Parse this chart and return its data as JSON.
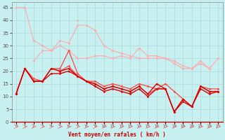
{
  "xlabel": "Vent moyen/en rafales ( km/h )",
  "background_color": "#c8f0f0",
  "grid_color": "#b0dede",
  "x": [
    0,
    1,
    2,
    3,
    4,
    5,
    6,
    7,
    8,
    9,
    10,
    11,
    12,
    13,
    14,
    15,
    16,
    17,
    18,
    19,
    20,
    21,
    22,
    23
  ],
  "series": [
    {
      "color": "#ffaaaa",
      "linewidth": 0.8,
      "marker": "D",
      "markersize": 1.5,
      "values": [
        45,
        45,
        32,
        30,
        28,
        30,
        28,
        25,
        25,
        26,
        26,
        25,
        26,
        25,
        29,
        26,
        26,
        25,
        23,
        21,
        21,
        24,
        21,
        25
      ]
    },
    {
      "color": "#ffaaaa",
      "linewidth": 0.8,
      "marker": "D",
      "markersize": 1.5,
      "values": [
        null,
        null,
        24,
        28,
        28,
        32,
        31,
        38,
        38,
        36,
        30,
        28,
        27,
        26,
        25,
        25,
        25,
        25,
        24,
        22,
        21,
        23,
        21,
        null
      ]
    },
    {
      "color": "#ffaaaa",
      "linewidth": 0.8,
      "marker": "D",
      "markersize": 1.5,
      "values": [
        null,
        null,
        null,
        null,
        null,
        null,
        null,
        40,
        null,
        null,
        null,
        null,
        null,
        null,
        null,
        null,
        null,
        null,
        null,
        null,
        null,
        null,
        null,
        null
      ]
    },
    {
      "color": "#ff4444",
      "linewidth": 0.9,
      "marker": "D",
      "markersize": 1.5,
      "values": [
        11,
        21,
        17,
        16,
        21,
        21,
        28,
        19,
        16,
        16,
        14,
        15,
        14,
        13,
        15,
        14,
        13,
        15,
        12,
        9,
        6,
        14,
        13,
        13
      ]
    },
    {
      "color": "#ff4444",
      "linewidth": 0.9,
      "marker": "D",
      "markersize": 1.5,
      "values": [
        11,
        21,
        16,
        16,
        21,
        20,
        22,
        18,
        16,
        15,
        13,
        14,
        13,
        12,
        14,
        11,
        13,
        13,
        4,
        9,
        6,
        14,
        12,
        12
      ]
    },
    {
      "color": "#dd0000",
      "linewidth": 1.0,
      "marker": "D",
      "markersize": 1.5,
      "values": [
        11,
        21,
        16,
        16,
        21,
        20,
        21,
        18,
        16,
        15,
        13,
        14,
        13,
        12,
        14,
        11,
        15,
        13,
        4,
        9,
        6,
        14,
        12,
        12
      ]
    },
    {
      "color": "#dd0000",
      "linewidth": 1.0,
      "marker": "D",
      "markersize": 1.5,
      "values": [
        11,
        21,
        16,
        16,
        19,
        19,
        20,
        18,
        16,
        14,
        12,
        13,
        12,
        11,
        13,
        10,
        13,
        13,
        4,
        8,
        6,
        13,
        11,
        12
      ]
    }
  ],
  "ylim": [
    0,
    47
  ],
  "yticks": [
    0,
    5,
    10,
    15,
    20,
    25,
    30,
    35,
    40,
    45
  ],
  "xlim": [
    -0.5,
    23.5
  ],
  "figsize": [
    3.2,
    2.0
  ],
  "dpi": 100,
  "arrow_color": "#ff7777",
  "xlabel_color": "#cc0000",
  "tick_color": "#555555",
  "spine_color": "#888888",
  "bottom_spine_color": "#cc0000"
}
